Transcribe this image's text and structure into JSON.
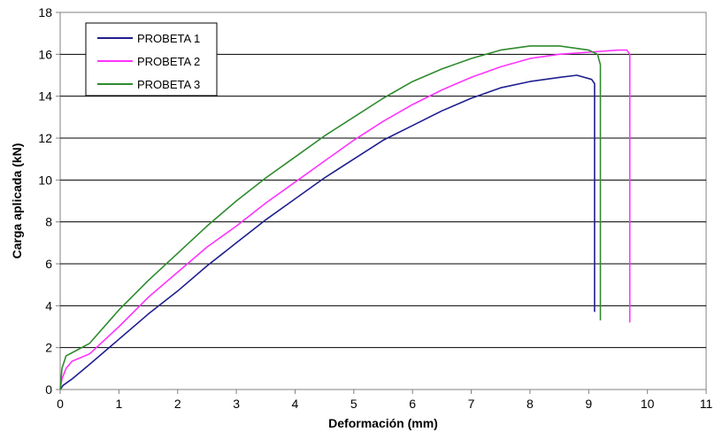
{
  "chart_data": {
    "type": "line",
    "xlabel": "Deformación (mm)",
    "ylabel": "Carga aplicada (kN)",
    "xlim": [
      0,
      11
    ],
    "ylim": [
      0,
      18
    ],
    "xticks": [
      0,
      1,
      2,
      3,
      4,
      5,
      6,
      7,
      8,
      9,
      10,
      11
    ],
    "yticks": [
      0,
      2,
      4,
      6,
      8,
      10,
      12,
      14,
      16,
      18
    ],
    "grid": "horizontal",
    "legend_position": "top-left",
    "series": [
      {
        "name": "PROBETA 1",
        "color": "#1f1f8f",
        "points": [
          [
            0,
            0
          ],
          [
            0.05,
            0.2
          ],
          [
            0.2,
            0.5
          ],
          [
            0.5,
            1.2
          ],
          [
            1,
            2.4
          ],
          [
            1.5,
            3.6
          ],
          [
            2,
            4.7
          ],
          [
            2.5,
            5.9
          ],
          [
            3,
            7.0
          ],
          [
            3.5,
            8.1
          ],
          [
            4,
            9.1
          ],
          [
            4.5,
            10.1
          ],
          [
            5,
            11.0
          ],
          [
            5.5,
            11.9
          ],
          [
            6,
            12.6
          ],
          [
            6.5,
            13.3
          ],
          [
            7,
            13.9
          ],
          [
            7.5,
            14.4
          ],
          [
            8,
            14.7
          ],
          [
            8.5,
            14.9
          ],
          [
            8.8,
            15.0
          ],
          [
            9.05,
            14.8
          ],
          [
            9.1,
            14.6
          ],
          [
            9.1,
            3.7
          ]
        ]
      },
      {
        "name": "PROBETA 2",
        "color": "#ff33ff",
        "points": [
          [
            0,
            0
          ],
          [
            0.03,
            0.5
          ],
          [
            0.1,
            1.0
          ],
          [
            0.2,
            1.35
          ],
          [
            0.5,
            1.7
          ],
          [
            1,
            3.0
          ],
          [
            1.5,
            4.4
          ],
          [
            2,
            5.6
          ],
          [
            2.5,
            6.8
          ],
          [
            3,
            7.8
          ],
          [
            3.5,
            8.9
          ],
          [
            4,
            9.9
          ],
          [
            4.5,
            10.9
          ],
          [
            5,
            11.9
          ],
          [
            5.5,
            12.8
          ],
          [
            6,
            13.6
          ],
          [
            6.5,
            14.3
          ],
          [
            7,
            14.9
          ],
          [
            7.5,
            15.4
          ],
          [
            8,
            15.8
          ],
          [
            8.5,
            16.0
          ],
          [
            9,
            16.1
          ],
          [
            9.5,
            16.2
          ],
          [
            9.65,
            16.2
          ],
          [
            9.7,
            16.0
          ],
          [
            9.7,
            3.2
          ]
        ]
      },
      {
        "name": "PROBETA 3",
        "color": "#2e8b2e",
        "points": [
          [
            0,
            0
          ],
          [
            0.03,
            1.0
          ],
          [
            0.1,
            1.6
          ],
          [
            0.3,
            1.9
          ],
          [
            0.5,
            2.2
          ],
          [
            1,
            3.8
          ],
          [
            1.5,
            5.2
          ],
          [
            2,
            6.5
          ],
          [
            2.5,
            7.8
          ],
          [
            3,
            9.0
          ],
          [
            3.5,
            10.1
          ],
          [
            4,
            11.1
          ],
          [
            4.5,
            12.1
          ],
          [
            5,
            13.0
          ],
          [
            5.5,
            13.9
          ],
          [
            6,
            14.7
          ],
          [
            6.5,
            15.3
          ],
          [
            7,
            15.8
          ],
          [
            7.5,
            16.2
          ],
          [
            8,
            16.4
          ],
          [
            8.5,
            16.4
          ],
          [
            9,
            16.2
          ],
          [
            9.15,
            16.0
          ],
          [
            9.2,
            15.5
          ],
          [
            9.2,
            3.3
          ]
        ]
      }
    ]
  }
}
